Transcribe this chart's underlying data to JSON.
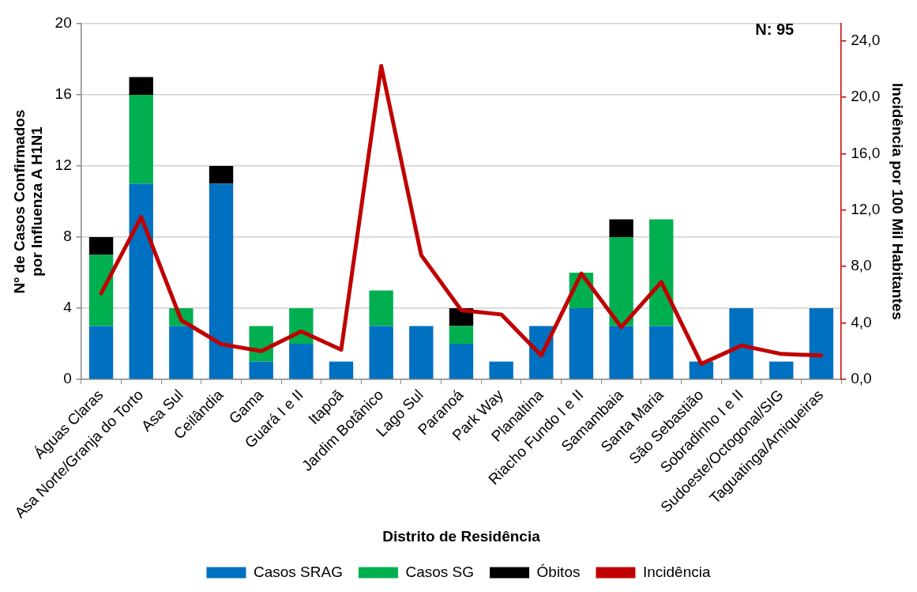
{
  "chart_data": {
    "type": "bar",
    "stacked": true,
    "xlabel": "Distrito de Residência",
    "ylabel": "Nº de Casos Confirmados\npor Influenza A H1N1",
    "y2label": "Incidência por 100 Mil Habitantes",
    "annotations": [
      "N: 95"
    ],
    "categories": [
      "Águas Claras",
      "Asa Norte/Granja do Torto",
      "Asa Sul",
      "Ceilândia",
      "Gama",
      "Guará I e II",
      "Itapoã",
      "Jardim Botânico",
      "Lago Sul",
      "Paranoá",
      "Park Way",
      "Planaltina",
      "Riacho Fundo I e II",
      "Samambaia",
      "Santa Maria",
      "São Sebastião",
      "Sobradinho I e II",
      "Sudoeste/Octogonal/SIG",
      "Taguatinga/Arniqueiras"
    ],
    "series": [
      {
        "name": "Casos SRAG",
        "color": "#0070c0",
        "values": [
          3,
          11,
          3,
          11,
          1,
          2,
          1,
          3,
          3,
          2,
          1,
          3,
          4,
          3,
          3,
          1,
          4,
          1,
          4
        ]
      },
      {
        "name": "Casos SG",
        "color": "#00b050",
        "values": [
          4,
          5,
          1,
          0,
          2,
          2,
          0,
          2,
          0,
          1,
          0,
          0,
          2,
          5,
          6,
          0,
          0,
          0,
          0
        ]
      },
      {
        "name": "Óbitos",
        "color": "#000000",
        "values": [
          1,
          1,
          0,
          1,
          0,
          0,
          0,
          0,
          0,
          1,
          0,
          0,
          0,
          1,
          0,
          0,
          0,
          0,
          0
        ]
      },
      {
        "name": "Incidência",
        "type": "line",
        "axis": "y2",
        "color": "#c00000",
        "values": [
          6.1,
          11.5,
          4.2,
          2.5,
          2.0,
          3.4,
          2.1,
          22.2,
          8.8,
          4.9,
          4.6,
          1.7,
          7.5,
          3.7,
          6.9,
          1.1,
          2.4,
          1.8,
          1.7
        ]
      }
    ],
    "ylim": [
      0,
      20
    ],
    "yticks": [
      0,
      4,
      8,
      12,
      16,
      20
    ],
    "y2lim": [
      0,
      25.2
    ],
    "y2ticks": [
      {
        "value": 0,
        "label": "0,0"
      },
      {
        "value": 4,
        "label": "4,0"
      },
      {
        "value": 8,
        "label": "8,0"
      },
      {
        "value": 12,
        "label": "12,0"
      },
      {
        "value": 16,
        "label": "16,0"
      },
      {
        "value": 20,
        "label": "20,0"
      },
      {
        "value": 24,
        "label": "24,0"
      }
    ],
    "grid": "y",
    "legend": "bottom",
    "marker": "none",
    "line_style": "solid"
  }
}
